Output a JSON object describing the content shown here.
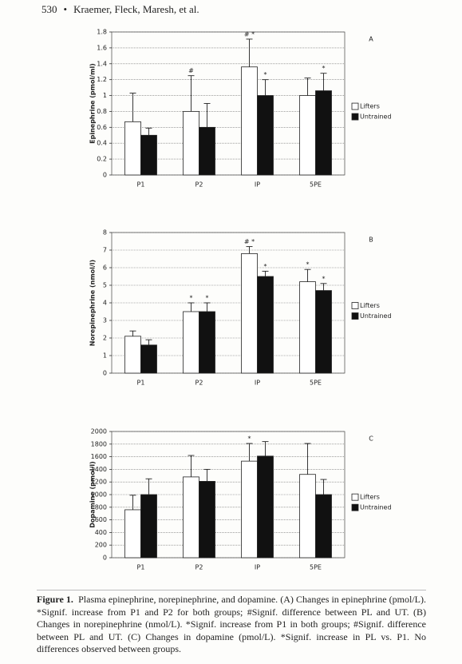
{
  "header": {
    "page": "530",
    "authors": "Kraemer, Fleck, Maresh, et al."
  },
  "chart_data": [
    {
      "type": "bar",
      "panel": "A",
      "ylabel": "Epinephrine (pmol/ml)",
      "categories": [
        "P1",
        "P2",
        "IP",
        "5PE"
      ],
      "series": [
        {
          "name": "Lifters",
          "color": "#ffffff",
          "values": [
            0.67,
            0.8,
            1.36,
            1.0
          ],
          "errors": [
            0.36,
            0.45,
            0.35,
            0.22
          ],
          "annotations": [
            null,
            "#",
            "# *",
            null
          ]
        },
        {
          "name": "Untrained",
          "color": "#111111",
          "values": [
            0.5,
            0.6,
            1.0,
            1.06
          ],
          "errors": [
            0.09,
            0.3,
            0.2,
            0.22
          ],
          "annotations": [
            null,
            null,
            "*",
            "*"
          ]
        }
      ],
      "ylim": [
        0,
        1.8
      ],
      "yticks": [
        0,
        0.2,
        0.4,
        0.6,
        0.8,
        1,
        1.2,
        1.4,
        1.6,
        1.8
      ],
      "grid": true,
      "legend": "right"
    },
    {
      "type": "bar",
      "panel": "B",
      "ylabel": "Norepinephrine (nmol/l)",
      "categories": [
        "P1",
        "P2",
        "IP",
        "5PE"
      ],
      "series": [
        {
          "name": "Lifters",
          "color": "#ffffff",
          "values": [
            2.1,
            3.5,
            6.8,
            5.2
          ],
          "errors": [
            0.3,
            0.5,
            0.4,
            0.7
          ],
          "annotations": [
            null,
            "*",
            "# *",
            "*"
          ]
        },
        {
          "name": "Untrained",
          "color": "#111111",
          "values": [
            1.6,
            3.5,
            5.5,
            4.7
          ],
          "errors": [
            0.3,
            0.5,
            0.3,
            0.4
          ],
          "annotations": [
            null,
            "*",
            "*",
            "*"
          ]
        }
      ],
      "ylim": [
        0,
        8
      ],
      "yticks": [
        0,
        1,
        2,
        3,
        4,
        5,
        6,
        7,
        8
      ],
      "grid": true,
      "legend": "right"
    },
    {
      "type": "bar",
      "panel": "C",
      "ylabel": "Dopamine (pmol/l)",
      "categories": [
        "P1",
        "P2",
        "IP",
        "5PE"
      ],
      "series": [
        {
          "name": "Lifters",
          "color": "#ffffff",
          "values": [
            760,
            1280,
            1530,
            1320
          ],
          "errors": [
            230,
            340,
            280,
            490
          ],
          "annotations": [
            null,
            null,
            "*",
            null
          ]
        },
        {
          "name": "Untrained",
          "color": "#111111",
          "values": [
            1000,
            1210,
            1610,
            1000
          ],
          "errors": [
            250,
            190,
            230,
            240
          ],
          "annotations": [
            null,
            null,
            null,
            null
          ]
        }
      ],
      "ylim": [
        0,
        2000
      ],
      "yticks": [
        0,
        200,
        400,
        600,
        800,
        1000,
        1200,
        1400,
        1600,
        1800,
        2000
      ],
      "grid": true,
      "legend": "right"
    }
  ],
  "caption": {
    "label": "Figure 1.",
    "text": "Plasma epinephrine, norepinephrine, and dopamine. (A) Changes in epinephrine (pmol/L). *Signif. increase from P1 and P2 for both groups; #Signif. difference between PL and UT. (B) Changes in norepinephrine (nmol/L). *Signif. increase from P1 in both groups; #Signif. difference between PL and UT. (C) Changes in dopamine (pmol/L). *Signif. increase in PL vs. P1. No differences observed between groups."
  }
}
